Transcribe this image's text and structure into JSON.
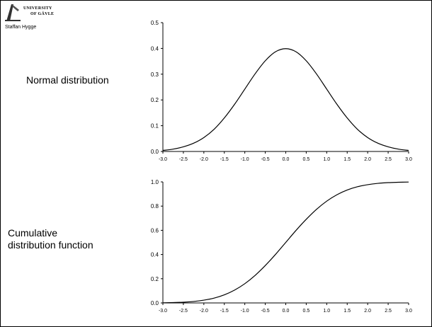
{
  "header": {
    "logo_line1": "UNIVERSITY",
    "logo_line2": "OF GÄVLE",
    "author": "Staffan Hygge"
  },
  "labels": {
    "normal": "Normal distribution",
    "cdf_line1": "Cumulative",
    "cdf_line2": "distribution function"
  },
  "chart_data": [
    {
      "type": "line",
      "title": "",
      "xlabel": "",
      "ylabel": "",
      "xlim": [
        -3.0,
        3.0
      ],
      "ylim": [
        0.0,
        0.5
      ],
      "x_ticks": [
        "-3.0",
        "-2.5",
        "-2.0",
        "-1.5",
        "-1.0",
        "-0.5",
        "0.0",
        "0.5",
        "1.0",
        "1.5",
        "2.0",
        "2.5",
        "3.0"
      ],
      "y_ticks": [
        "0.0",
        "0.1",
        "0.2",
        "0.3",
        "0.4",
        "0.5"
      ],
      "grid": false,
      "series": [
        {
          "x": [
            -3.0,
            -2.75,
            -2.5,
            -2.25,
            -2.0,
            -1.75,
            -1.5,
            -1.25,
            -1.0,
            -0.75,
            -0.5,
            -0.25,
            0.0,
            0.25,
            0.5,
            0.75,
            1.0,
            1.25,
            1.5,
            1.75,
            2.0,
            2.25,
            2.5,
            2.75,
            3.0
          ],
          "values": [
            0.004,
            0.009,
            0.018,
            0.032,
            0.054,
            0.086,
            0.13,
            0.183,
            0.242,
            0.301,
            0.352,
            0.387,
            0.399,
            0.387,
            0.352,
            0.301,
            0.242,
            0.183,
            0.13,
            0.086,
            0.054,
            0.032,
            0.018,
            0.009,
            0.004
          ]
        }
      ]
    },
    {
      "type": "line",
      "title": "",
      "xlabel": "",
      "ylabel": "",
      "xlim": [
        -3.0,
        3.0
      ],
      "ylim": [
        0.0,
        1.0
      ],
      "x_ticks": [
        "-3.0",
        "-2.5",
        "-2.0",
        "-1.5",
        "-1.0",
        "-0.5",
        "0.0",
        "0.5",
        "1.0",
        "1.5",
        "2.0",
        "2.5",
        "3.0"
      ],
      "y_ticks": [
        "0.0",
        "0.2",
        "0.4",
        "0.6",
        "0.8",
        "1.0"
      ],
      "grid": false,
      "series": [
        {
          "x": [
            -3.0,
            -2.75,
            -2.5,
            -2.25,
            -2.0,
            -1.75,
            -1.5,
            -1.25,
            -1.0,
            -0.75,
            -0.5,
            -0.25,
            0.0,
            0.25,
            0.5,
            0.75,
            1.0,
            1.25,
            1.5,
            1.75,
            2.0,
            2.25,
            2.5,
            2.75,
            3.0
          ],
          "values": [
            0.001,
            0.003,
            0.006,
            0.012,
            0.023,
            0.04,
            0.067,
            0.106,
            0.159,
            0.227,
            0.309,
            0.401,
            0.5,
            0.599,
            0.691,
            0.773,
            0.841,
            0.894,
            0.933,
            0.96,
            0.977,
            0.988,
            0.994,
            0.997,
            0.999
          ]
        }
      ]
    }
  ]
}
